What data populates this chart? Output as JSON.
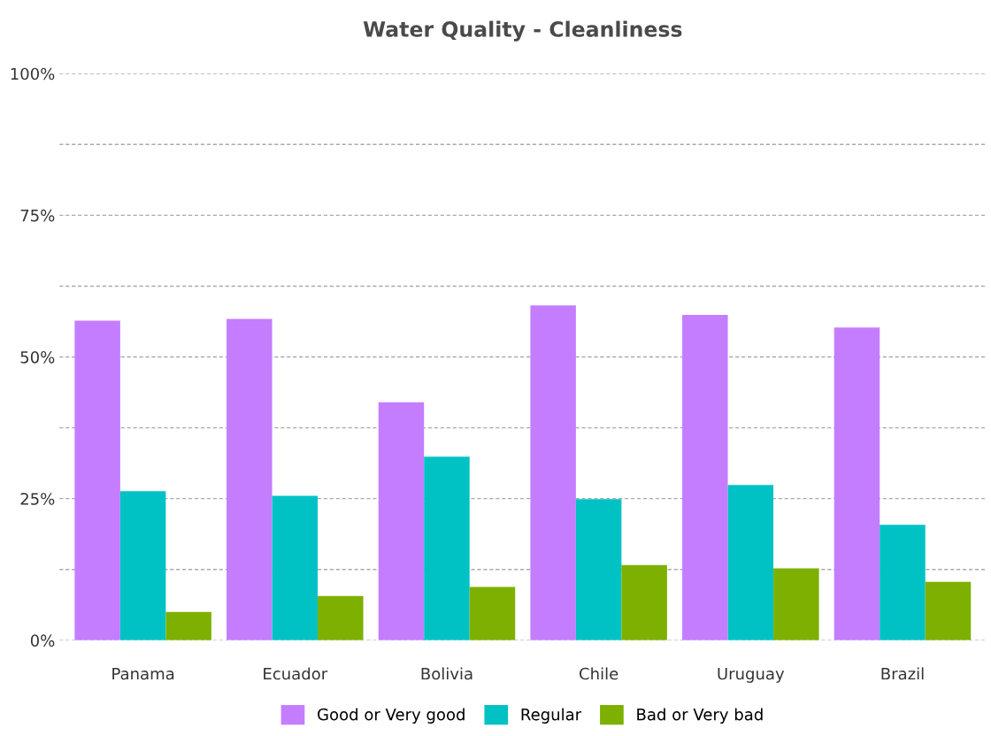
{
  "chart_data": {
    "type": "bar",
    "title": "Water Quality - Cleanliness",
    "categories": [
      "Panama",
      "Ecuador",
      "Bolivia",
      "Chile",
      "Uruguay",
      "Brazil"
    ],
    "series": [
      {
        "name": "Good or Very good",
        "color": "#c57dff",
        "values": [
          56.4,
          56.7,
          42.0,
          59.1,
          57.4,
          55.2
        ]
      },
      {
        "name": "Regular",
        "color": "#00c2c4",
        "values": [
          26.3,
          25.5,
          32.4,
          24.9,
          27.4,
          20.4
        ]
      },
      {
        "name": "Bad or Very bad",
        "color": "#7db000",
        "values": [
          5.0,
          7.8,
          9.4,
          13.3,
          12.7,
          10.3
        ]
      }
    ],
    "ylim": [
      0,
      100
    ],
    "yticks": [
      {
        "value": 0,
        "label": "0%"
      },
      {
        "value": 12.5,
        "label": null
      },
      {
        "value": 25,
        "label": "25%"
      },
      {
        "value": 37.5,
        "label": null
      },
      {
        "value": 50,
        "label": "50%"
      },
      {
        "value": 62.5,
        "label": null
      },
      {
        "value": 75,
        "label": "75%"
      },
      {
        "value": 87.5,
        "label": null
      },
      {
        "value": 100,
        "label": "100%"
      }
    ],
    "grid": "y",
    "legend": "bottom"
  }
}
